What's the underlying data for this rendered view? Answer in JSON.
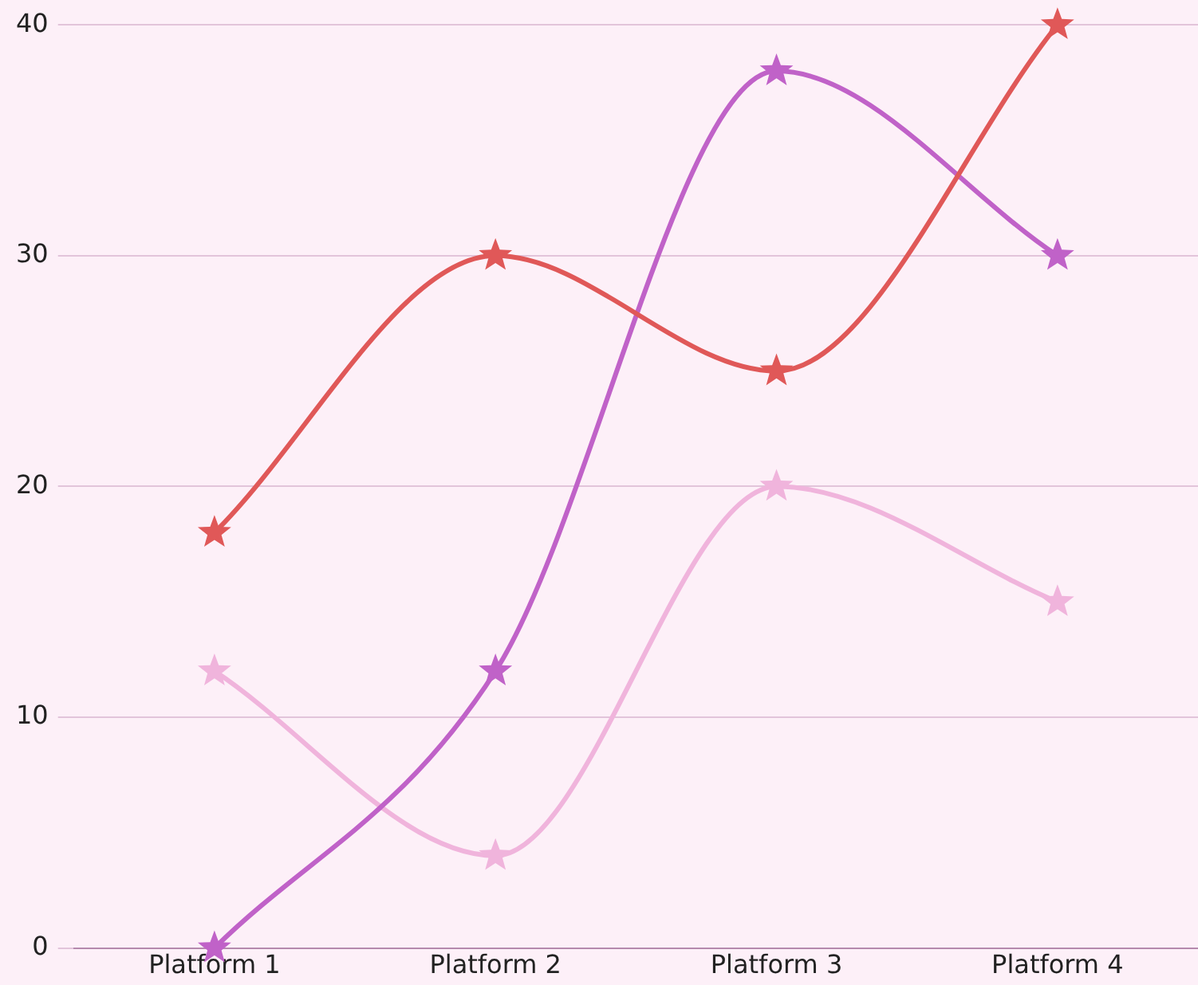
{
  "chart_data": {
    "type": "line",
    "categories": [
      "Platform 1",
      "Platform 2",
      "Platform 3",
      "Platform 4"
    ],
    "series": [
      {
        "color": "#e05858",
        "values": [
          18,
          30,
          25,
          40
        ]
      },
      {
        "color": "#c062c8",
        "values": [
          0,
          12,
          38,
          30
        ]
      },
      {
        "color": "#f0b4dc",
        "values": [
          12,
          4,
          20,
          15
        ]
      }
    ],
    "ylim": [
      0,
      40
    ],
    "yticks": [
      0,
      10,
      20,
      30,
      40
    ],
    "grid": "y",
    "legend": false,
    "marker": "star",
    "line_style": "solid"
  }
}
